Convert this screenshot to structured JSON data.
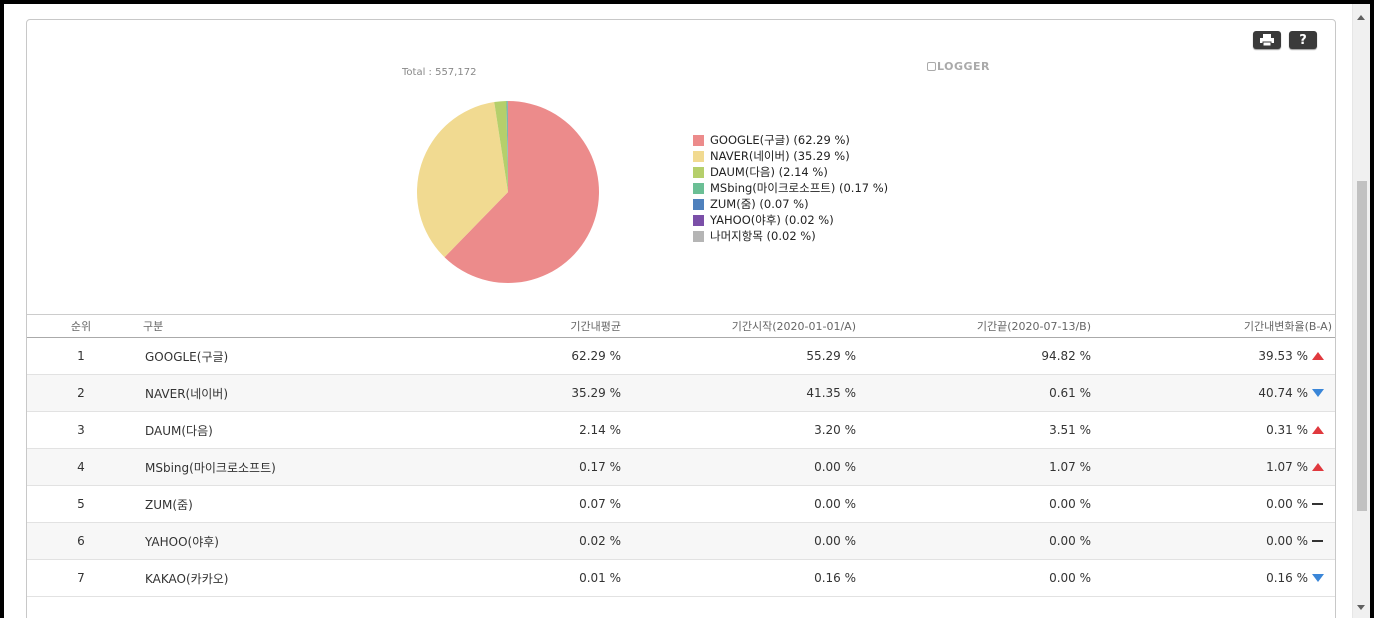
{
  "toolbar": {
    "print_label": "▙",
    "help_label": "?"
  },
  "total_label": "Total : 557,172",
  "logo_text": "LOGGER",
  "chart_data": {
    "type": "pie",
    "title": "",
    "slices": [
      {
        "label": "GOOGLE(구글)",
        "value": 62.29,
        "color": "#ec8b8b"
      },
      {
        "label": "NAVER(네이버)",
        "value": 35.29,
        "color": "#f1da91"
      },
      {
        "label": "DAUM(다음)",
        "value": 2.14,
        "color": "#b5cf6b"
      },
      {
        "label": "MSbing(마이크로소프트)",
        "value": 0.17,
        "color": "#6bbf95"
      },
      {
        "label": "ZUM(줌)",
        "value": 0.07,
        "color": "#4f81bd"
      },
      {
        "label": "YAHOO(야후)",
        "value": 0.02,
        "color": "#7b4fa8"
      },
      {
        "label": "나머지항목",
        "value": 0.02,
        "color": "#b5b5b5"
      }
    ]
  },
  "legend": [
    {
      "text": "GOOGLE(구글) (62.29 %)",
      "color": "#ec8b8b"
    },
    {
      "text": "NAVER(네이버) (35.29 %)",
      "color": "#f1da91"
    },
    {
      "text": "DAUM(다음) (2.14 %)",
      "color": "#b5cf6b"
    },
    {
      "text": "MSbing(마이크로소프트) (0.17 %)",
      "color": "#6bbf95"
    },
    {
      "text": "ZUM(줌) (0.07 %)",
      "color": "#4f81bd"
    },
    {
      "text": "YAHOO(야후) (0.02 %)",
      "color": "#7b4fa8"
    },
    {
      "text": "나머지항목 (0.02 %)",
      "color": "#b5b5b5"
    }
  ],
  "table": {
    "headers": {
      "rank": "순위",
      "name": "구분",
      "avg": "기간내평균",
      "start": "기간시작(2020-01-01/A)",
      "end": "기간끝(2020-07-13/B)",
      "change": "기간내변화율(B-A)"
    },
    "rows": [
      {
        "rank": "1",
        "name": "GOOGLE(구글)",
        "avg": "62.29 %",
        "start": "55.29 %",
        "end": "94.82 %",
        "change": "39.53 %",
        "trend": "up"
      },
      {
        "rank": "2",
        "name": "NAVER(네이버)",
        "avg": "35.29 %",
        "start": "41.35 %",
        "end": "0.61 %",
        "change": "40.74 %",
        "trend": "down"
      },
      {
        "rank": "3",
        "name": "DAUM(다음)",
        "avg": "2.14 %",
        "start": "3.20 %",
        "end": "3.51 %",
        "change": "0.31 %",
        "trend": "up"
      },
      {
        "rank": "4",
        "name": "MSbing(마이크로소프트)",
        "avg": "0.17 %",
        "start": "0.00 %",
        "end": "1.07 %",
        "change": "1.07 %",
        "trend": "up"
      },
      {
        "rank": "5",
        "name": "ZUM(줌)",
        "avg": "0.07 %",
        "start": "0.00 %",
        "end": "0.00 %",
        "change": "0.00 %",
        "trend": "flat"
      },
      {
        "rank": "6",
        "name": "YAHOO(야후)",
        "avg": "0.02 %",
        "start": "0.00 %",
        "end": "0.00 %",
        "change": "0.00 %",
        "trend": "flat"
      },
      {
        "rank": "7",
        "name": "KAKAO(카카오)",
        "avg": "0.01 %",
        "start": "0.16 %",
        "end": "0.00 %",
        "change": "0.16 %",
        "trend": "down"
      }
    ]
  }
}
